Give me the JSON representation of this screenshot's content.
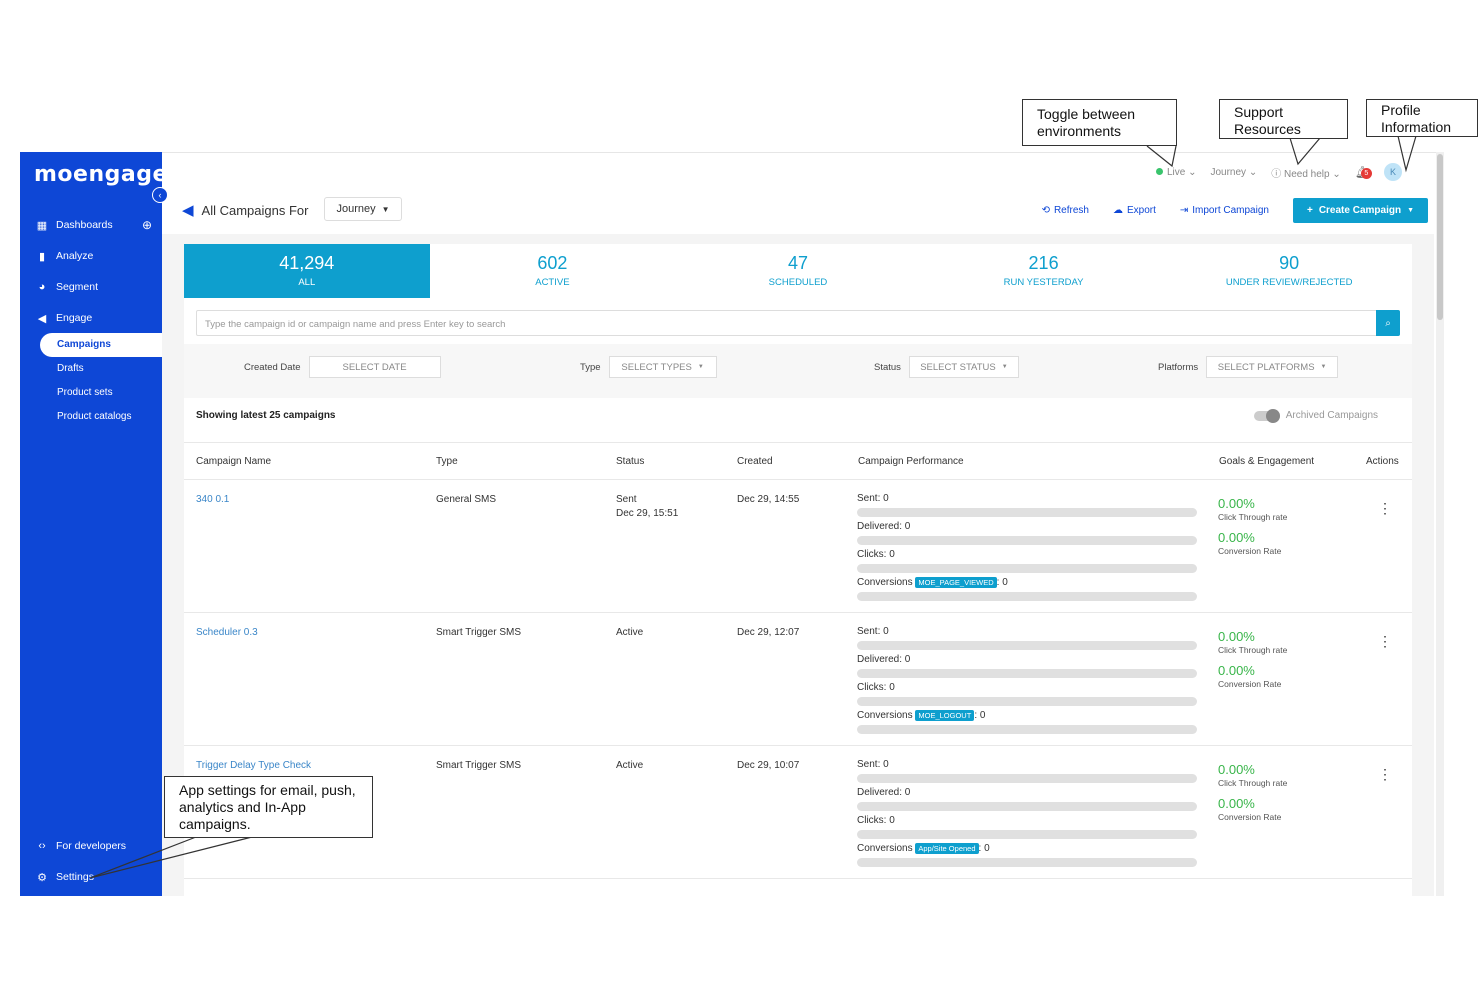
{
  "brand": {
    "logo_text": "moengage"
  },
  "sidebar": {
    "items": [
      {
        "label": "Dashboards",
        "icon": "grid-icon"
      },
      {
        "label": "Analyze",
        "icon": "bar-chart-icon"
      },
      {
        "label": "Segment",
        "icon": "pie-icon"
      },
      {
        "label": "Engage",
        "icon": "megaphone-icon"
      }
    ],
    "sub_items": [
      "Campaigns",
      "Drafts",
      "Product sets",
      "Product catalogs"
    ],
    "bottom": [
      {
        "label": "For developers",
        "icon": "code-icon"
      },
      {
        "label": "Settings",
        "icon": "gear-icon"
      }
    ]
  },
  "topbar": {
    "environment": "Live",
    "product": "Journey",
    "help": "Need help",
    "notification_count": "5",
    "avatar_initial": "K"
  },
  "header": {
    "title": "All Campaigns For",
    "journey_select": "Journey",
    "refresh": "Refresh",
    "export": "Export",
    "import": "Import Campaign",
    "create": "Create Campaign"
  },
  "stats": [
    {
      "value": "41,294",
      "label": "ALL"
    },
    {
      "value": "602",
      "label": "ACTIVE"
    },
    {
      "value": "47",
      "label": "SCHEDULED"
    },
    {
      "value": "216",
      "label": "RUN YESTERDAY"
    },
    {
      "value": "90",
      "label": "UNDER REVIEW/REJECTED"
    }
  ],
  "search": {
    "placeholder": "Type the campaign id or campaign name and press Enter key to search"
  },
  "filters": {
    "created_label": "Created Date",
    "created_value": "SELECT DATE",
    "type_label": "Type",
    "type_value": "SELECT TYPES",
    "status_label": "Status",
    "status_value": "SELECT STATUS",
    "platforms_label": "Platforms",
    "platforms_value": "SELECT PLATFORMS"
  },
  "list": {
    "showing": "Showing latest 25 campaigns",
    "archived": "Archived Campaigns"
  },
  "table": {
    "headers": [
      "Campaign Name",
      "Type",
      "Status",
      "Created",
      "Campaign Performance",
      "Goals & Engagement",
      "Actions"
    ],
    "rows": [
      {
        "name": "340 0.1",
        "type": "General SMS",
        "status": "Sent",
        "status_date": "Dec 29, 15:51",
        "created": "Dec 29, 14:55",
        "sent": "Sent: 0",
        "delivered": "Delivered: 0",
        "clicks": "Clicks: 0",
        "conversions_label": "Conversions",
        "conversion_tag": "MOE_PAGE_VIEWED",
        "conversion_value": ": 0",
        "ctr": "0.00%",
        "ctr_label": "Click Through rate",
        "cvr": "0.00%",
        "cvr_label": "Conversion Rate"
      },
      {
        "name": "Scheduler 0.3",
        "type": "Smart Trigger SMS",
        "status": "Active",
        "status_date": "",
        "created": "Dec 29, 12:07",
        "sent": "Sent: 0",
        "delivered": "Delivered: 0",
        "clicks": "Clicks: 0",
        "conversions_label": "Conversions",
        "conversion_tag": "MOE_LOGOUT",
        "conversion_value": ": 0",
        "ctr": "0.00%",
        "ctr_label": "Click Through rate",
        "cvr": "0.00%",
        "cvr_label": "Conversion Rate"
      },
      {
        "name": "Trigger Delay Type Check",
        "type": "Smart Trigger SMS",
        "status": "Active",
        "status_date": "",
        "created": "Dec 29, 10:07",
        "sent": "Sent: 0",
        "delivered": "Delivered: 0",
        "clicks": "Clicks: 0",
        "conversions_label": "Conversions",
        "conversion_tag": "App/Site Opened",
        "conversion_value": ": 0",
        "ctr": "0.00%",
        "ctr_label": "Click Through rate",
        "cvr": "0.00%",
        "cvr_label": "Conversion Rate"
      }
    ]
  },
  "callouts": {
    "toggle": "Toggle between environments",
    "support": "Support Resources",
    "profile": "Profile Information",
    "settings": "App settings for email, push, analytics and In-App campaigns."
  },
  "colors": {
    "sidebar": "#0e47d6",
    "accent": "#0e9fce",
    "success": "#39b54a"
  }
}
